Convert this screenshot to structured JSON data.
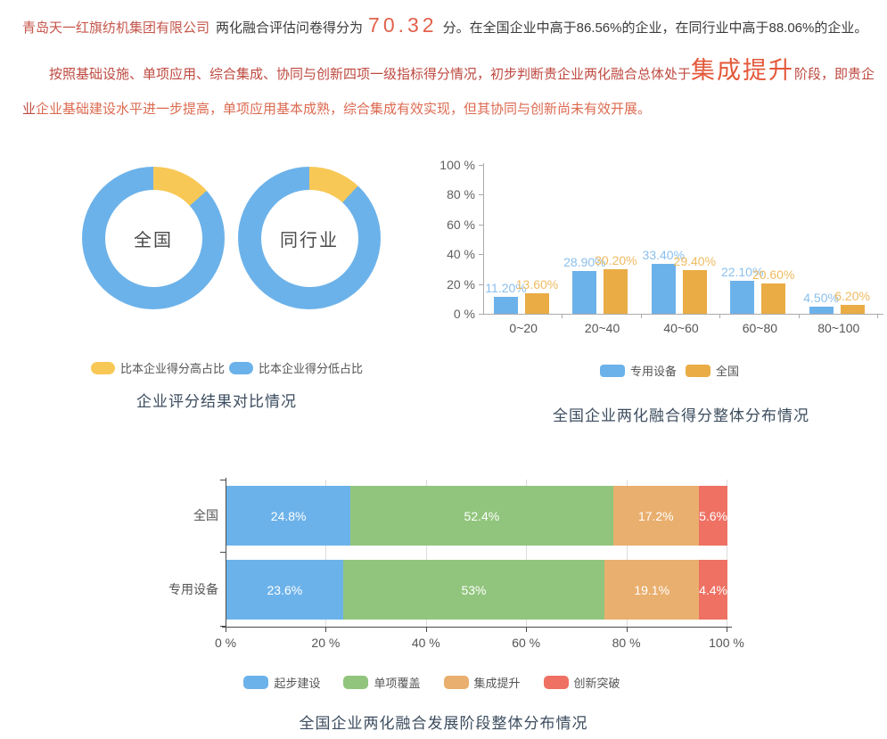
{
  "intro": {
    "company": "青岛天一红旗纺机集团有限公司",
    "score_lead": "两化融合评估问卷得分为",
    "score": "70.32",
    "score_unit": "分。",
    "score_tail": "在全国企业中高于86.56%的企业，在同行业中高于88.06%的企业。",
    "judgement_lead": "按照基础设施、单项应用、综合集成、协同与创新四项一级指标得分情况，初步判断贵企业两化融合总体处于",
    "stage": "集成提升",
    "judgement_mid": "阶段，即贵企业",
    "judgement_tail": "企业基础建设水平进一步提高，单项应用基本成熟，综合集成有效实现，但其协同与创新尚未有效开展。"
  },
  "colors": {
    "blue": "#6CB2EA",
    "donut_yellow": "#F8C856",
    "bar_orange": "#EAAC45",
    "bar_label_blue": "#8BC0ED",
    "bar_label_orange": "#EFBB60",
    "stack_blue": "#6CB2EA",
    "stack_green": "#91C57D",
    "stack_orange": "#E9AF6E",
    "stack_red": "#EE7163",
    "title": "#3C4D5F",
    "axis_gray": "#ABABAB",
    "axis_dark": "#4A4A4A"
  },
  "chart_data": [
    {
      "type": "pie",
      "variant": "donut-pair",
      "title": "企业评分结果对比情况",
      "legend": [
        "比本企业得分高占比",
        "比本企业得分低占比"
      ],
      "legend_colors": [
        "#F8C856",
        "#6CB2EA"
      ],
      "donuts": [
        {
          "label": "全国",
          "slices": [
            {
              "name": "比本企业得分高占比",
              "value": 13.44
            },
            {
              "name": "比本企业得分低占比",
              "value": 86.56
            }
          ]
        },
        {
          "label": "同行业",
          "slices": [
            {
              "name": "比本企业得分高占比",
              "value": 11.94
            },
            {
              "name": "比本企业得分低占比",
              "value": 88.06
            }
          ]
        }
      ]
    },
    {
      "type": "bar",
      "variant": "grouped-vertical",
      "title": "全国企业两化融合得分整体分布情况",
      "categories": [
        "0~20",
        "20~40",
        "40~60",
        "60~80",
        "80~100"
      ],
      "series": [
        {
          "name": "专用设备",
          "color": "#6CB2EA",
          "label_color": "#8BC0ED",
          "values": [
            11.2,
            28.9,
            33.4,
            22.1,
            4.5
          ],
          "labels": [
            "11.20%",
            "28.90%",
            "33.40%",
            "22.10%",
            "4.50%"
          ]
        },
        {
          "name": "全国",
          "color": "#EAAC45",
          "label_color": "#EFBB60",
          "values": [
            13.6,
            30.2,
            29.4,
            20.6,
            6.2
          ],
          "labels": [
            "13.60%",
            "30.20%",
            "29.40%",
            "20.60%",
            "6.20%"
          ]
        }
      ],
      "ylim": [
        0,
        100
      ],
      "y_tick_values": [
        0,
        20,
        40,
        60,
        80,
        100
      ],
      "y_ticks": [
        "0 %",
        "20 %",
        "40 %",
        "60 %",
        "80 %",
        "100 %"
      ],
      "legend_position": "bottom",
      "grid": false
    },
    {
      "type": "bar",
      "variant": "stacked-horizontal",
      "title": "全国企业两化融合发展阶段整体分布情况",
      "stages": [
        "起步建设",
        "单项覆盖",
        "集成提升",
        "创新突破"
      ],
      "stage_colors": [
        "#6CB2EA",
        "#91C57D",
        "#E9AF6E",
        "#EE7163"
      ],
      "rows": [
        {
          "label": "全国",
          "values": [
            24.8,
            52.4,
            17.2,
            5.6
          ],
          "labels": [
            "24.8%",
            "52.4%",
            "17.2%",
            "5.6%"
          ]
        },
        {
          "label": "专用设备",
          "values": [
            23.6,
            53,
            19.1,
            4.4
          ],
          "labels": [
            "23.6%",
            "53%",
            "19.1%",
            "4.4%"
          ]
        }
      ],
      "xlim": [
        0,
        100
      ],
      "x_tick_values": [
        0,
        20,
        40,
        60,
        80,
        100
      ],
      "x_ticks": [
        "0 %",
        "20 %",
        "40 %",
        "60 %",
        "80 %",
        "100 %"
      ],
      "legend_position": "bottom",
      "grid": true
    }
  ]
}
